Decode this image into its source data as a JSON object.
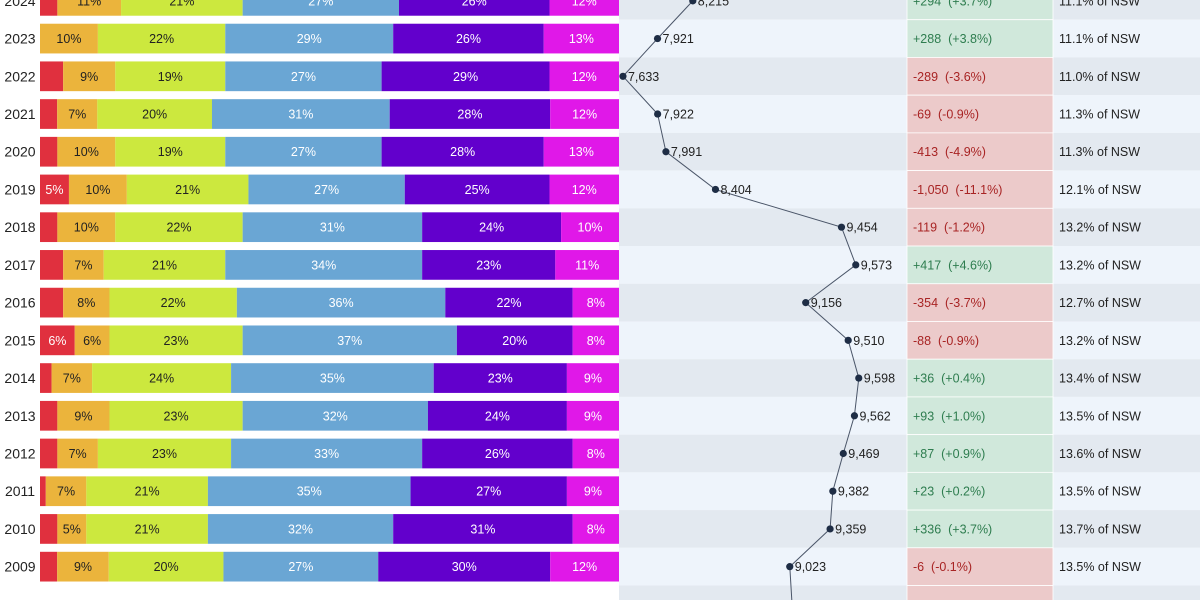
{
  "chart_data": {
    "type": "bar",
    "subtype": "stacked-100-percent with line and table",
    "categories": [
      "2024",
      "2023",
      "2022",
      "2021",
      "2020",
      "2019",
      "2018",
      "2017",
      "2016",
      "2015",
      "2014",
      "2013",
      "2012",
      "2011",
      "2010",
      "2009"
    ],
    "series": [
      {
        "name": "segment-1",
        "color": "#e0303e",
        "values": [
          3,
          0,
          4,
          3,
          3,
          5,
          3,
          4,
          4,
          6,
          2,
          3,
          3,
          1,
          3,
          3
        ]
      },
      {
        "name": "segment-2",
        "color": "#ebb43c",
        "values": [
          11,
          10,
          9,
          7,
          10,
          10,
          10,
          7,
          8,
          6,
          7,
          9,
          7,
          7,
          5,
          9
        ]
      },
      {
        "name": "segment-3",
        "color": "#cce83e",
        "values": [
          21,
          22,
          19,
          20,
          19,
          21,
          22,
          21,
          22,
          23,
          24,
          23,
          23,
          21,
          21,
          20
        ]
      },
      {
        "name": "segment-4",
        "color": "#6aa6d4",
        "values": [
          27,
          29,
          27,
          31,
          27,
          27,
          31,
          34,
          36,
          37,
          35,
          32,
          33,
          35,
          32,
          27
        ]
      },
      {
        "name": "segment-5",
        "color": "#6200cc",
        "values": [
          26,
          26,
          29,
          28,
          28,
          25,
          24,
          23,
          22,
          20,
          23,
          24,
          26,
          27,
          31,
          30
        ]
      },
      {
        "name": "segment-6",
        "color": "#e018e8",
        "values": [
          12,
          13,
          12,
          12,
          13,
          12,
          10,
          11,
          8,
          8,
          9,
          9,
          8,
          9,
          8,
          12
        ]
      }
    ],
    "labels": {
      "segment-1": [
        "",
        "",
        "",
        "",
        "",
        "5%",
        "",
        "",
        "",
        "6%",
        "",
        "",
        "",
        "",
        "",
        ""
      ],
      "segment-2": [
        "11%",
        "10%",
        "9%",
        "7%",
        "10%",
        "10%",
        "10%",
        "7%",
        "8%",
        "6%",
        "7%",
        "9%",
        "7%",
        "7%",
        "5%",
        "9%"
      ],
      "segment-3": [
        "21%",
        "22%",
        "19%",
        "20%",
        "19%",
        "21%",
        "22%",
        "21%",
        "22%",
        "23%",
        "24%",
        "23%",
        "23%",
        "21%",
        "21%",
        "20%"
      ],
      "segment-4": [
        "27%",
        "29%",
        "27%",
        "31%",
        "27%",
        "27%",
        "31%",
        "34%",
        "36%",
        "37%",
        "35%",
        "32%",
        "33%",
        "35%",
        "32%",
        "27%"
      ],
      "segment-5": [
        "26%",
        "26%",
        "29%",
        "28%",
        "28%",
        "25%",
        "24%",
        "23%",
        "22%",
        "20%",
        "23%",
        "24%",
        "26%",
        "27%",
        "31%",
        "30%"
      ],
      "segment-6": [
        "12%",
        "13%",
        "12%",
        "12%",
        "13%",
        "12%",
        "10%",
        "11%",
        "8%",
        "8%",
        "9%",
        "9%",
        "8%",
        "9%",
        "8%",
        "12%"
      ]
    },
    "totals": {
      "type": "line",
      "values": [
        8215,
        7921,
        7633,
        7922,
        7991,
        8404,
        9454,
        9573,
        9156,
        9510,
        9598,
        9562,
        9469,
        9382,
        9359,
        9023
      ],
      "labels": [
        "8,215",
        "7,921",
        "7,633",
        "7,922",
        "7,991",
        "8,404",
        "9,454",
        "9,573",
        "9,156",
        "9,510",
        "9,598",
        "9,562",
        "9,469",
        "9,382",
        "9,359",
        "9,023"
      ],
      "xlim": [
        7600,
        10000
      ],
      "line_color": "#4a5568",
      "marker_color": "#1e2d45"
    },
    "change": {
      "labels": [
        "+294  (+3.7%)",
        "+288  (+3.8%)",
        "-289  (-3.6%)",
        "-69  (-0.9%)",
        "-413  (-4.9%)",
        "-1,050  (-11.1%)",
        "-119  (-1.2%)",
        "+417  (+4.6%)",
        "-354  (-3.7%)",
        "-88  (-0.9%)",
        "+36  (+0.4%)",
        "+93  (+1.0%)",
        "+87  (+0.9%)",
        "+23  (+0.2%)",
        "+336  (+3.7%)",
        "-6  (-0.1%)"
      ],
      "sign": [
        "pos",
        "pos",
        "neg",
        "neg",
        "neg",
        "neg",
        "neg",
        "pos",
        "neg",
        "neg",
        "pos",
        "pos",
        "pos",
        "pos",
        "pos",
        "neg"
      ],
      "pos_bg": "#d0e8db",
      "neg_bg": "#eccaca",
      "pos_text": "#2e7d4f",
      "neg_text": "#a82424"
    },
    "share": {
      "labels": [
        "11.1% of NSW",
        "11.1% of NSW",
        "11.0% of NSW",
        "11.3% of NSW",
        "11.3% of NSW",
        "12.1% of NSW",
        "13.2% of NSW",
        "13.2% of NSW",
        "12.7% of NSW",
        "13.2% of NSW",
        "13.4% of NSW",
        "13.5% of NSW",
        "13.6% of NSW",
        "13.5% of NSW",
        "13.7% of NSW",
        "13.5% of NSW"
      ]
    },
    "row_bg": [
      "#e3e9f0",
      "#eef4fb"
    ]
  }
}
